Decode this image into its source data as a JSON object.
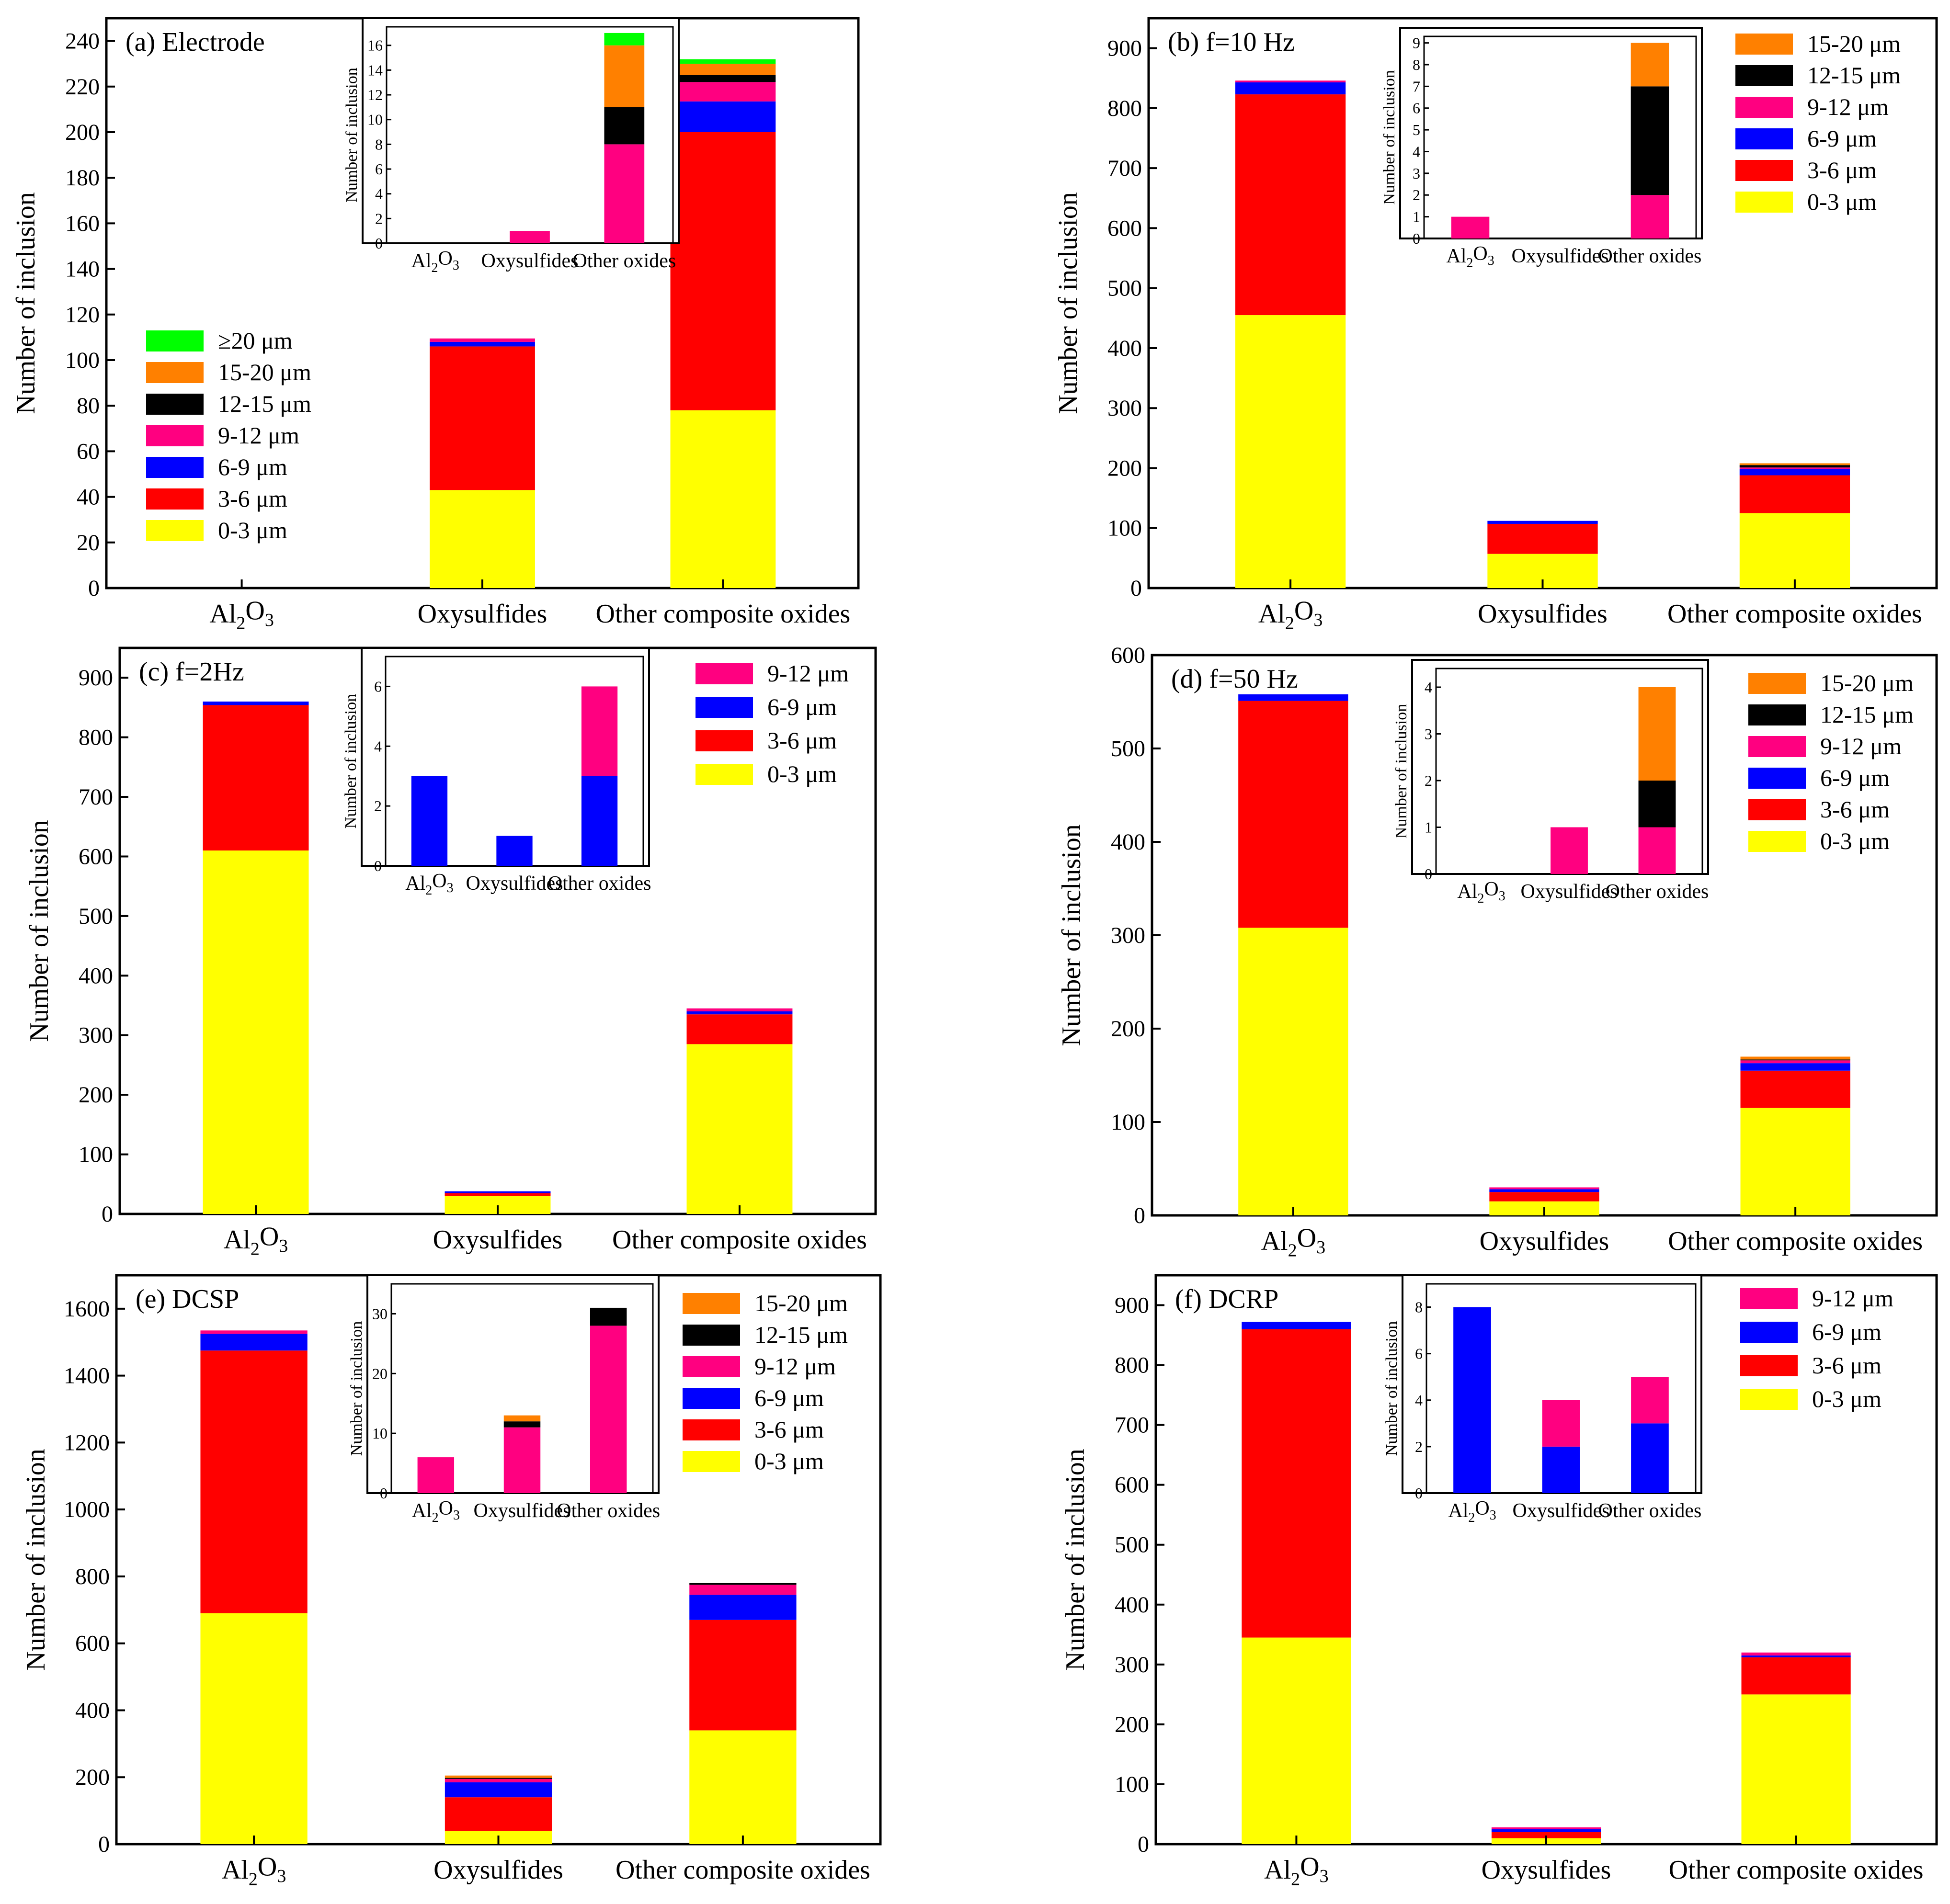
{
  "colors": {
    "0-3": "#ffff00",
    "3-6": "#ff0000",
    "6-9": "#0000ff",
    "9-12": "#ff0080",
    "12-15": "#000000",
    "15-20": "#ff8000",
    ">=20": "#00ff00"
  },
  "y_axis_label": "Number of inclusion",
  "chart_data": [
    {
      "type": "bar",
      "stacked": true,
      "title": "(a) Electrode",
      "ylabel": "Number of inclusion",
      "categories": [
        "Al2O3",
        "Oxysulfides",
        "Other composite oxides"
      ],
      "ylim": [
        0,
        250
      ],
      "yticks": [
        0,
        20,
        40,
        60,
        80,
        100,
        120,
        140,
        160,
        180,
        200,
        220,
        240
      ],
      "legend": {
        "position": "left-middle",
        "entries": [
          "≥20 μm",
          "15-20 μm",
          "12-15 μm",
          "9-12 μm",
          "6-9 μm",
          "3-6 μm",
          "0-3 μm"
        ],
        "keys": [
          ">=20",
          "15-20",
          "12-15",
          "9-12",
          "6-9",
          "3-6",
          "0-3"
        ]
      },
      "series": [
        {
          "name": "0-3 μm",
          "key": "0-3",
          "values": [
            0,
            43,
            78
          ]
        },
        {
          "name": "3-6 μm",
          "key": "3-6",
          "values": [
            0,
            63,
            122
          ]
        },
        {
          "name": "6-9 μm",
          "key": "6-9",
          "values": [
            0,
            2,
            13.5
          ]
        },
        {
          "name": "9-12 μm",
          "key": "9-12",
          "values": [
            0,
            1.5,
            8.5
          ]
        },
        {
          "name": "12-15 μm",
          "key": "12-15",
          "values": [
            0,
            0,
            3
          ]
        },
        {
          "name": "15-20 μm",
          "key": "15-20",
          "values": [
            0,
            0,
            5
          ]
        },
        {
          "name": "≥20 μm",
          "key": ">=20",
          "values": [
            0,
            0,
            2
          ]
        }
      ],
      "inset": {
        "categories": [
          "Al2O3",
          "Oxysulfides",
          "Other oxides"
        ],
        "ylim": [
          0,
          17.5
        ],
        "yticks": [
          0,
          2,
          4,
          6,
          8,
          10,
          12,
          14,
          16
        ],
        "ylabel": "Number of inclusion",
        "series": [
          {
            "name": "9-12 μm",
            "key": "9-12",
            "values": [
              0,
              1,
              8
            ]
          },
          {
            "name": "12-15 μm",
            "key": "12-15",
            "values": [
              0,
              0,
              3
            ]
          },
          {
            "name": "15-20 μm",
            "key": "15-20",
            "values": [
              0,
              0,
              5
            ]
          },
          {
            "name": "≥20 μm",
            "key": ">=20",
            "values": [
              0,
              0,
              1
            ]
          }
        ]
      }
    },
    {
      "type": "bar",
      "stacked": true,
      "title": "(b) f=10 Hz",
      "ylabel": "Number of inclusion",
      "categories": [
        "Al2O3",
        "Oxysulfides",
        "Other composite oxides"
      ],
      "ylim": [
        0,
        950
      ],
      "yticks": [
        0,
        100,
        200,
        300,
        400,
        500,
        600,
        700,
        800,
        900
      ],
      "legend": {
        "position": "top-right",
        "entries": [
          "15-20 μm",
          "12-15 μm",
          "9-12 μm",
          "6-9 μm",
          "3-6 μm",
          "0-3 μm"
        ],
        "keys": [
          "15-20",
          "12-15",
          "9-12",
          "6-9",
          "3-6",
          "0-3"
        ]
      },
      "series": [
        {
          "name": "0-3 μm",
          "key": "0-3",
          "values": [
            455,
            57,
            125
          ]
        },
        {
          "name": "3-6 μm",
          "key": "3-6",
          "values": [
            368,
            50,
            63
          ]
        },
        {
          "name": "6-9 μm",
          "key": "6-9",
          "values": [
            20,
            5,
            10
          ]
        },
        {
          "name": "9-12 μm",
          "key": "9-12",
          "values": [
            3,
            0,
            3
          ]
        },
        {
          "name": "12-15 μm",
          "key": "12-15",
          "values": [
            0,
            0,
            4
          ]
        },
        {
          "name": "15-20 μm",
          "key": "15-20",
          "values": [
            0,
            0,
            3
          ]
        }
      ],
      "inset": {
        "categories": [
          "Al2O3",
          "Oxysulfides",
          "Other oxides"
        ],
        "ylim": [
          0,
          9.3
        ],
        "yticks": [
          0,
          1,
          2,
          3,
          4,
          5,
          6,
          7,
          8,
          9
        ],
        "ylabel": "Number of inclusion",
        "series": [
          {
            "name": "9-12 μm",
            "key": "9-12",
            "values": [
              1,
              0,
              2
            ]
          },
          {
            "name": "12-15 μm",
            "key": "12-15",
            "values": [
              0,
              0,
              5
            ]
          },
          {
            "name": "15-20 μm",
            "key": "15-20",
            "values": [
              0,
              0,
              2
            ]
          }
        ]
      }
    },
    {
      "type": "bar",
      "stacked": true,
      "title": "(c) f=2Hz",
      "ylabel": "Number of inclusion",
      "categories": [
        "Al2O3",
        "Oxysulfides",
        "Other composite oxides"
      ],
      "ylim": [
        0,
        950
      ],
      "yticks": [
        0,
        100,
        200,
        300,
        400,
        500,
        600,
        700,
        800,
        900
      ],
      "legend": {
        "position": "top-right",
        "entries": [
          "9-12 μm",
          "6-9 μm",
          "3-6 μm",
          "0-3 μm"
        ],
        "keys": [
          "9-12",
          "6-9",
          "3-6",
          "0-3"
        ]
      },
      "series": [
        {
          "name": "0-3 μm",
          "key": "0-3",
          "values": [
            610,
            30,
            285
          ]
        },
        {
          "name": "3-6 μm",
          "key": "3-6",
          "values": [
            244,
            5,
            50
          ]
        },
        {
          "name": "6-9 μm",
          "key": "6-9",
          "values": [
            6,
            3,
            5
          ]
        },
        {
          "name": "9-12 μm",
          "key": "9-12",
          "values": [
            0,
            0,
            5
          ]
        }
      ],
      "inset": {
        "categories": [
          "Al2O3",
          "Oxysulfides",
          "Other oxides"
        ],
        "ylim": [
          0,
          7
        ],
        "yticks": [
          0,
          2,
          4,
          6
        ],
        "ylabel": "Number of inclusion",
        "series": [
          {
            "name": "6-9 μm",
            "key": "6-9",
            "values": [
              3,
              1,
              3
            ]
          },
          {
            "name": "9-12 μm",
            "key": "9-12",
            "values": [
              0,
              0,
              3
            ]
          }
        ]
      }
    },
    {
      "type": "bar",
      "stacked": true,
      "title": "(d) f=50 Hz",
      "ylabel": "Number of inclusion",
      "categories": [
        "Al2O3",
        "Oxysulfides",
        "Other composite oxides"
      ],
      "ylim": [
        0,
        600
      ],
      "yticks": [
        0,
        100,
        200,
        300,
        400,
        500,
        600
      ],
      "legend": {
        "position": "top-right",
        "entries": [
          "15-20 μm",
          "12-15 μm",
          "9-12 μm",
          "6-9 μm",
          "3-6 μm",
          "0-3 μm"
        ],
        "keys": [
          "15-20",
          "12-15",
          "9-12",
          "6-9",
          "3-6",
          "0-3"
        ]
      },
      "series": [
        {
          "name": "0-3 μm",
          "key": "0-3",
          "values": [
            308,
            15,
            115
          ]
        },
        {
          "name": "3-6 μm",
          "key": "3-6",
          "values": [
            243,
            10,
            40
          ]
        },
        {
          "name": "6-9 μm",
          "key": "6-9",
          "values": [
            7,
            3,
            8
          ]
        },
        {
          "name": "9-12 μm",
          "key": "9-12",
          "values": [
            0,
            2,
            3
          ]
        },
        {
          "name": "12-15 μm",
          "key": "12-15",
          "values": [
            0,
            0,
            1
          ]
        },
        {
          "name": "15-20 μm",
          "key": "15-20",
          "values": [
            0,
            0,
            3
          ]
        }
      ],
      "inset": {
        "categories": [
          "Al2O3",
          "Oxysulfides",
          "Other oxides"
        ],
        "ylim": [
          0,
          4.4
        ],
        "yticks": [
          0,
          1,
          2,
          3,
          4
        ],
        "ylabel": "Number of inclusion",
        "series": [
          {
            "name": "9-12 μm",
            "key": "9-12",
            "values": [
              0,
              1,
              1
            ]
          },
          {
            "name": "12-15 μm",
            "key": "12-15",
            "values": [
              0,
              0,
              1
            ]
          },
          {
            "name": "15-20 μm",
            "key": "15-20",
            "values": [
              0,
              0,
              2
            ]
          }
        ]
      }
    },
    {
      "type": "bar",
      "stacked": true,
      "title": "(e) DCSP",
      "ylabel": "Number of inclusion",
      "categories": [
        "Al2O3",
        "Oxysulfides",
        "Other composite oxides"
      ],
      "ylim": [
        0,
        1700
      ],
      "yticks": [
        0,
        200,
        400,
        600,
        800,
        1000,
        1200,
        1400,
        1600
      ],
      "legend": {
        "position": "top-right",
        "entries": [
          "15-20 μm",
          "12-15 μm",
          "9-12 μm",
          "6-9 μm",
          "3-6 μm",
          "0-3 μm"
        ],
        "keys": [
          "15-20",
          "12-15",
          "9-12",
          "6-9",
          "3-6",
          "0-3"
        ]
      },
      "series": [
        {
          "name": "0-3 μm",
          "key": "0-3",
          "values": [
            690,
            40,
            340
          ]
        },
        {
          "name": "3-6 μm",
          "key": "3-6",
          "values": [
            785,
            100,
            330
          ]
        },
        {
          "name": "6-9 μm",
          "key": "6-9",
          "values": [
            50,
            45,
            75
          ]
        },
        {
          "name": "9-12 μm",
          "key": "9-12",
          "values": [
            10,
            10,
            30
          ]
        },
        {
          "name": "12-15 μm",
          "key": "12-15",
          "values": [
            0,
            3,
            5
          ]
        },
        {
          "name": "15-20 μm",
          "key": "15-20",
          "values": [
            0,
            7,
            0
          ]
        }
      ],
      "inset": {
        "categories": [
          "Al2O3",
          "Oxysulfides",
          "Other oxides"
        ],
        "ylim": [
          0,
          35
        ],
        "yticks": [
          0,
          10,
          20,
          30
        ],
        "ylabel": "Number of inclusion",
        "series": [
          {
            "name": "9-12 μm",
            "key": "9-12",
            "values": [
              6,
              11,
              28
            ]
          },
          {
            "name": "12-15 μm",
            "key": "12-15",
            "values": [
              0,
              1,
              3
            ]
          },
          {
            "name": "15-20 μm",
            "key": "15-20",
            "values": [
              0,
              1,
              0
            ]
          }
        ]
      }
    },
    {
      "type": "bar",
      "stacked": true,
      "title": "(f) DCRP",
      "ylabel": "Number of inclusion",
      "categories": [
        "Al2O3",
        "Oxysulfides",
        "Other composite oxides"
      ],
      "ylim": [
        0,
        950
      ],
      "yticks": [
        0,
        100,
        200,
        300,
        400,
        500,
        600,
        700,
        800,
        900
      ],
      "legend": {
        "position": "top-right",
        "entries": [
          "9-12 μm",
          "6-9 μm",
          "3-6 μm",
          "0-3 μm"
        ],
        "keys": [
          "9-12",
          "6-9",
          "3-6",
          "0-3"
        ]
      },
      "series": [
        {
          "name": "0-3 μm",
          "key": "0-3",
          "values": [
            345,
            10,
            250
          ]
        },
        {
          "name": "3-6 μm",
          "key": "3-6",
          "values": [
            515,
            10,
            62
          ]
        },
        {
          "name": "6-9 μm",
          "key": "6-9",
          "values": [
            12,
            5,
            3
          ]
        },
        {
          "name": "9-12 μm",
          "key": "9-12",
          "values": [
            0,
            3,
            5
          ]
        }
      ],
      "inset": {
        "categories": [
          "Al2O3",
          "Oxysulfides",
          "Other oxides"
        ],
        "ylim": [
          0,
          9
        ],
        "yticks": [
          0,
          2,
          4,
          6,
          8
        ],
        "ylabel": "Number of inclusion",
        "series": [
          {
            "name": "6-9 μm",
            "key": "6-9",
            "values": [
              8,
              2,
              3
            ]
          },
          {
            "name": "9-12 μm",
            "key": "9-12",
            "values": [
              0,
              2,
              2
            ]
          }
        ]
      }
    }
  ]
}
